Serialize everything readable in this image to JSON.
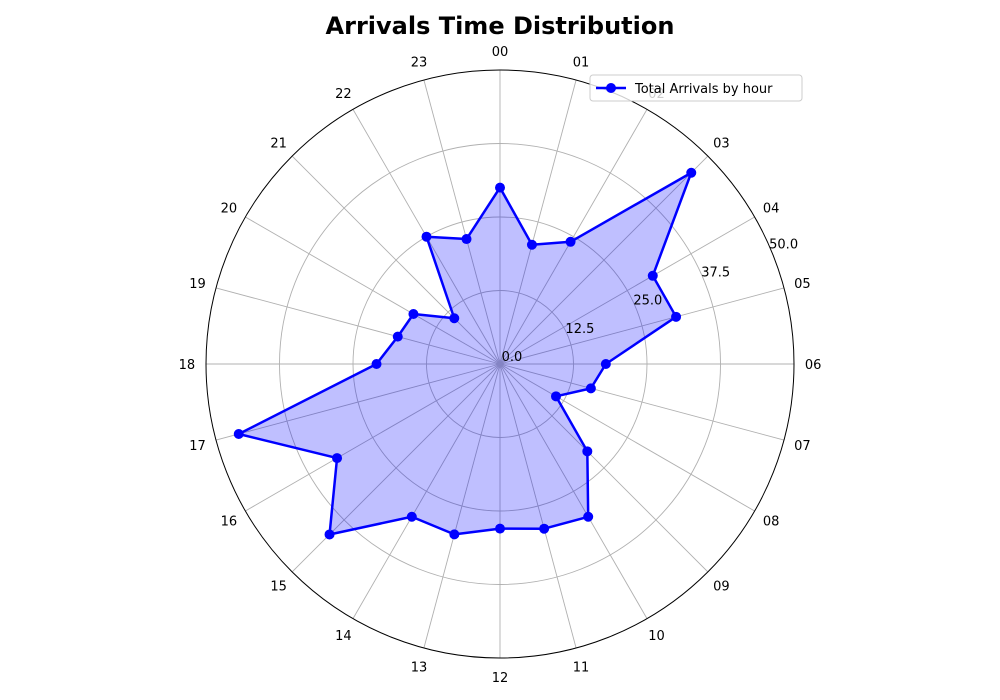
{
  "chart_data": {
    "type": "radar",
    "title": "Arrivals Time Distribution",
    "categories": [
      "00",
      "01",
      "02",
      "03",
      "04",
      "05",
      "06",
      "07",
      "08",
      "09",
      "10",
      "11",
      "12",
      "13",
      "14",
      "15",
      "16",
      "17",
      "18",
      "19",
      "20",
      "21",
      "22",
      "23"
    ],
    "series": [
      {
        "name": "Total Arrivals by hour",
        "values": [
          30,
          21,
          24,
          46,
          30,
          31,
          18,
          16,
          11,
          21,
          30,
          29,
          28,
          30,
          30,
          41,
          32,
          46,
          21,
          18,
          17,
          11,
          25,
          22
        ],
        "line_color": "#0000ff",
        "fill_color": "#0000ff"
      }
    ],
    "rlim": [
      0,
      50
    ],
    "r_ticks": [
      0.0,
      12.5,
      25.0,
      37.5,
      50.0
    ],
    "r_tick_labels": [
      "0.0",
      "12.5",
      "25.0",
      "37.5",
      "50.0"
    ],
    "grid": true,
    "legend_position": "top-right"
  }
}
